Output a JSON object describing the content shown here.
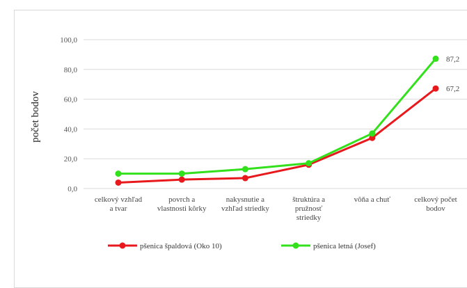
{
  "chart_data": {
    "type": "line",
    "title": "",
    "xlabel": "",
    "ylabel": "počet bodov",
    "ylim": [
      0,
      100
    ],
    "yticks": [
      "0,0",
      "20,0",
      "40,0",
      "60,0",
      "80,0",
      "100,0"
    ],
    "grid": true,
    "legend_position": "bottom",
    "categories": [
      [
        "celkový vzhľad",
        "a tvar"
      ],
      [
        "povrch a",
        "vlastnosti kôrky"
      ],
      [
        "nakysnutie a",
        "vzhľad striedky"
      ],
      [
        "štruktúra a",
        "pružnosť",
        "striedky"
      ],
      [
        "vôňa a chuť"
      ],
      [
        "celkový počet",
        "bodov"
      ]
    ],
    "series": [
      {
        "name": "pšenica špaldová (Oko 10)",
        "color": "#e8191c",
        "values": [
          4,
          6,
          7,
          16,
          34,
          67.2
        ],
        "last_label": "67,2"
      },
      {
        "name": "pšenica letná (Josef)",
        "color": "#33e01c",
        "values": [
          10,
          10,
          13,
          17,
          37,
          87.2
        ],
        "last_label": "87,2"
      }
    ]
  }
}
